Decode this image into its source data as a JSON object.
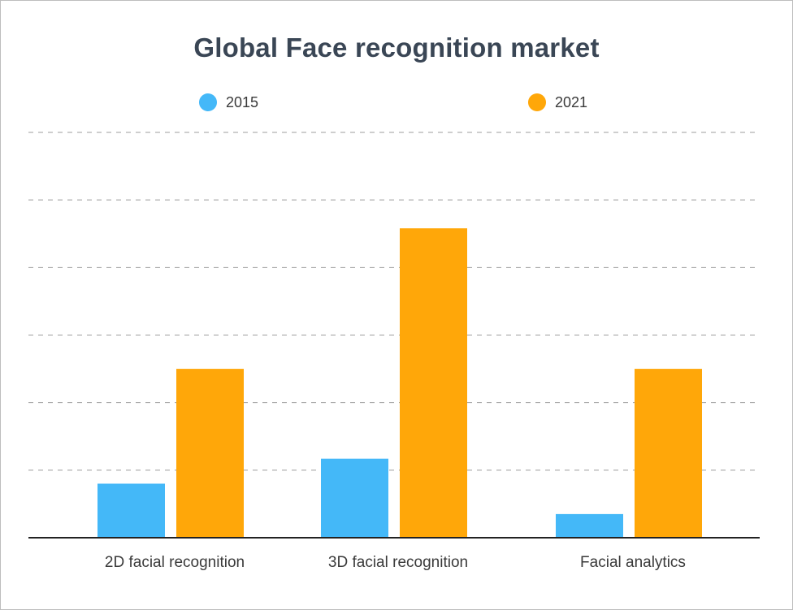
{
  "chart_data": {
    "type": "bar",
    "title": "Global Face recognition market",
    "categories": [
      "2D facial recognition",
      "3D facial recognition",
      "Facial analytics"
    ],
    "series": [
      {
        "name": "2015",
        "color": "#44b8f8",
        "values": [
          0.8,
          1.17,
          0.35
        ]
      },
      {
        "name": "2021",
        "color": "#ffa709",
        "values": [
          2.5,
          4.58,
          2.5
        ]
      }
    ],
    "xlabel": "",
    "ylabel": "",
    "ylim": [
      0,
      6
    ],
    "grid": true,
    "grid_style": "dashed",
    "legend_position": "top"
  }
}
